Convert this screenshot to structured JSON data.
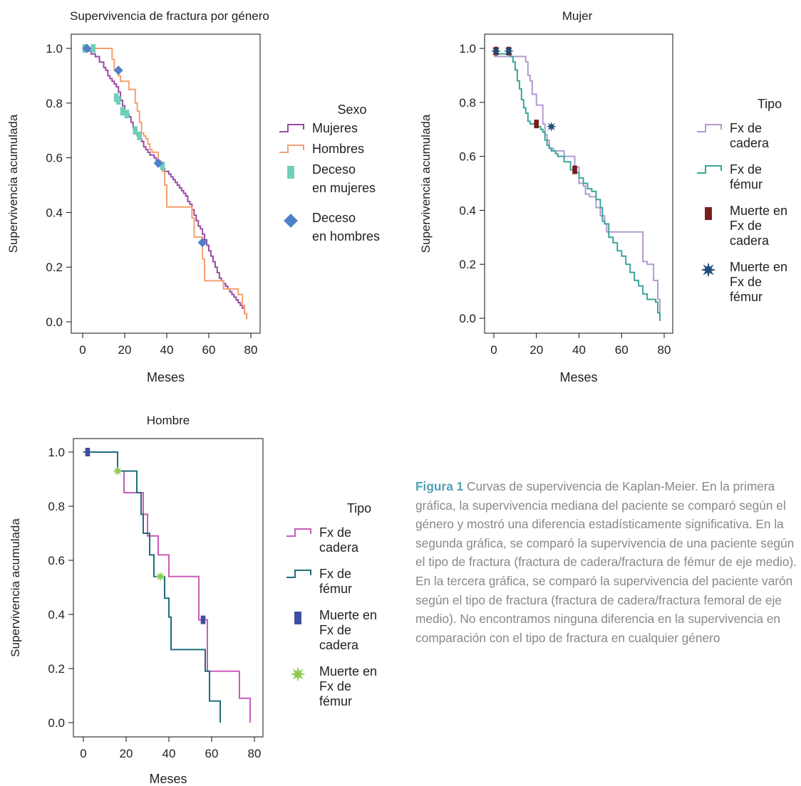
{
  "colors": {
    "mujeres": "#9a4aa6",
    "hombres": "#f4a070",
    "deceso_mujeres": "#6fcfb8",
    "deceso_hombres": "#4f80c8",
    "mujer_cadera": "#b49ad0",
    "mujer_femur": "#3aa69a",
    "mujer_muerte_cadera": "#7a1c1c",
    "mujer_muerte_femur": "#1e4f7a",
    "hombre_cadera": "#c95cb8",
    "hombre_femur": "#1f6e7a",
    "hombre_muerte_cadera": "#3f4ea0",
    "hombre_muerte_femur": "#8acc50",
    "caption_label": "#4fa3b5",
    "caption_text": "#888888"
  },
  "caption": {
    "figure_label": "Figura 1",
    "text": " Curvas de supervivencia de Kaplan-Meier. En la primera gráfica, la supervivencia mediana del paciente se comparó según el género y mostró una diferencia estadísticamente significativa. En la segunda gráfica, se comparó la supervivencia de una paciente según el tipo de fractura (fractura de cadera/fractura de fémur de eje medio). En la tercera gráfica, se comparó la supervivencia del paciente varón según el tipo de fractura (fractura de cadera/fractura femoral de eje medio). No encontramos ninguna diferencia en la supervivencia en comparación con el tipo de fractura en cualquier género"
  },
  "chart_data": [
    {
      "type": "line",
      "step": true,
      "title": "Supervivencia de fractura por género",
      "xlabel": "Meses",
      "ylabel": "Supervivencia acumulada",
      "xlim": [
        0,
        80
      ],
      "ylim": [
        0,
        1
      ],
      "xticks": [
        "0",
        "20",
        "40",
        "60",
        "80"
      ],
      "yticks": [
        "0.0",
        "0.2",
        "0.4",
        "0.6",
        "0.8",
        "1.0"
      ],
      "legend_title": "Sexo",
      "legend_position": "right",
      "series": [
        {
          "name": "Mujeres",
          "color": "#9a4aa6",
          "x": [
            0,
            2,
            4,
            6,
            8,
            10,
            11,
            12,
            13,
            14,
            15,
            16,
            17,
            18,
            19,
            20,
            21,
            22,
            23,
            24,
            25,
            26,
            27,
            28,
            29,
            30,
            31,
            32,
            33,
            34,
            35,
            36,
            37,
            38,
            39,
            40,
            41,
            42,
            43,
            44,
            45,
            46,
            47,
            48,
            49,
            50,
            51,
            52,
            53,
            54,
            55,
            56,
            57,
            58,
            59,
            60,
            61,
            62,
            63,
            64,
            65,
            66,
            67,
            68,
            69,
            70,
            71,
            72,
            73,
            74,
            75,
            76,
            77,
            78
          ],
          "y": [
            1.0,
            0.99,
            0.98,
            0.97,
            0.95,
            0.93,
            0.92,
            0.9,
            0.89,
            0.88,
            0.87,
            0.86,
            0.84,
            0.81,
            0.79,
            0.77,
            0.76,
            0.75,
            0.73,
            0.71,
            0.69,
            0.68,
            0.67,
            0.66,
            0.64,
            0.63,
            0.62,
            0.61,
            0.61,
            0.6,
            0.59,
            0.58,
            0.57,
            0.56,
            0.55,
            0.55,
            0.54,
            0.53,
            0.52,
            0.51,
            0.5,
            0.49,
            0.48,
            0.47,
            0.46,
            0.44,
            0.43,
            0.41,
            0.39,
            0.37,
            0.35,
            0.34,
            0.32,
            0.3,
            0.28,
            0.26,
            0.24,
            0.22,
            0.2,
            0.18,
            0.16,
            0.15,
            0.14,
            0.13,
            0.12,
            0.11,
            0.1,
            0.09,
            0.08,
            0.07,
            0.06,
            0.05,
            0.03,
            0.01
          ]
        },
        {
          "name": "Hombres",
          "color": "#f4a070",
          "x": [
            0,
            14,
            15,
            17,
            18,
            22,
            25,
            26,
            27,
            28,
            29,
            30,
            31,
            32,
            33,
            36,
            37,
            38,
            39,
            40,
            44,
            45,
            46,
            48,
            50,
            52,
            53,
            57,
            58,
            60,
            62,
            64,
            67,
            70,
            72,
            74,
            76,
            77,
            78
          ],
          "y": [
            1.0,
            0.96,
            0.92,
            0.9,
            0.88,
            0.85,
            0.8,
            0.77,
            0.73,
            0.69,
            0.68,
            0.67,
            0.65,
            0.63,
            0.62,
            0.59,
            0.57,
            0.55,
            0.5,
            0.42,
            0.42,
            0.42,
            0.42,
            0.42,
            0.42,
            0.38,
            0.31,
            0.23,
            0.15,
            0.15,
            0.15,
            0.15,
            0.12,
            0.12,
            0.12,
            0.1,
            0.06,
            0.03,
            0.01
          ]
        }
      ],
      "markers": [
        {
          "name": "Deceso en mujeres",
          "shape": "rect",
          "color": "#6fcfb8",
          "x": [
            1,
            5,
            16,
            17,
            19,
            21,
            25,
            27,
            38
          ],
          "y": [
            1.0,
            1.0,
            0.82,
            0.81,
            0.77,
            0.76,
            0.7,
            0.68,
            0.57
          ]
        },
        {
          "name": "Deceso en hombres",
          "shape": "diamond",
          "color": "#4f80c8",
          "x": [
            2,
            17,
            36,
            57
          ],
          "y": [
            1.0,
            0.92,
            0.58,
            0.29
          ]
        }
      ]
    },
    {
      "type": "line",
      "step": true,
      "title": "Mujer",
      "xlabel": "Meses",
      "ylabel": "Supervivencia acumulada",
      "xlim": [
        0,
        80
      ],
      "ylim": [
        0,
        1
      ],
      "xticks": [
        "0",
        "20",
        "40",
        "60",
        "80"
      ],
      "yticks": [
        "0.0",
        "0.2",
        "0.4",
        "0.6",
        "0.8",
        "1.0"
      ],
      "legend_title": "Tipo",
      "legend_position": "right",
      "series": [
        {
          "name": "Fx de cadera",
          "color": "#b49ad0",
          "x": [
            0,
            10,
            15,
            16,
            17,
            18,
            20,
            23,
            24,
            25,
            26,
            28,
            30,
            33,
            38,
            40,
            42,
            43,
            45,
            48,
            50,
            52,
            53,
            56,
            58,
            61,
            64,
            70,
            72,
            75,
            77,
            78
          ],
          "y": [
            0.97,
            0.97,
            0.95,
            0.9,
            0.88,
            0.83,
            0.79,
            0.72,
            0.68,
            0.66,
            0.63,
            0.62,
            0.62,
            0.6,
            0.56,
            0.5,
            0.49,
            0.46,
            0.45,
            0.41,
            0.38,
            0.35,
            0.32,
            0.32,
            0.32,
            0.32,
            0.32,
            0.21,
            0.2,
            0.14,
            0.07,
            0.02
          ]
        },
        {
          "name": "Fx de fémur",
          "color": "#3aa69a",
          "x": [
            0,
            8,
            9,
            10,
            11,
            12,
            13,
            14,
            15,
            16,
            17,
            18,
            19,
            20,
            21,
            22,
            23,
            24,
            25,
            26,
            27,
            28,
            29,
            30,
            33,
            36,
            38,
            40,
            42,
            44,
            46,
            48,
            50,
            51,
            52,
            54,
            56,
            58,
            60,
            62,
            64,
            66,
            68,
            70,
            72,
            74,
            76,
            77,
            78
          ],
          "y": [
            0.98,
            0.97,
            0.95,
            0.92,
            0.88,
            0.85,
            0.81,
            0.78,
            0.76,
            0.73,
            0.72,
            0.72,
            0.72,
            0.71,
            0.71,
            0.7,
            0.69,
            0.66,
            0.64,
            0.63,
            0.62,
            0.62,
            0.61,
            0.6,
            0.58,
            0.55,
            0.54,
            0.52,
            0.5,
            0.48,
            0.47,
            0.44,
            0.41,
            0.36,
            0.35,
            0.3,
            0.28,
            0.25,
            0.23,
            0.2,
            0.17,
            0.14,
            0.12,
            0.09,
            0.07,
            0.07,
            0.06,
            0.02,
            -0.01
          ]
        }
      ],
      "markers": [
        {
          "name": "Muerte en Fx de cadera",
          "shape": "rect",
          "color": "#7a1c1c",
          "x": [
            1,
            7,
            20,
            38
          ],
          "y": [
            0.99,
            0.99,
            0.72,
            0.55
          ]
        },
        {
          "name": "Muerte en Fx de fémur",
          "shape": "star",
          "color": "#1e4f7a",
          "x": [
            1,
            7,
            27
          ],
          "y": [
            0.99,
            0.99,
            0.71
          ]
        }
      ]
    },
    {
      "type": "line",
      "step": true,
      "title": "Hombre",
      "xlabel": "Meses",
      "ylabel": "Supervivencia acumulada",
      "xlim": [
        0,
        80
      ],
      "ylim": [
        0,
        1
      ],
      "xticks": [
        "0",
        "20",
        "40",
        "60",
        "80"
      ],
      "yticks": [
        "0.0",
        "0.2",
        "0.4",
        "0.6",
        "0.8",
        "1.0"
      ],
      "legend_title": "Tipo",
      "legend_position": "right",
      "series": [
        {
          "name": "Fx de cadera",
          "color": "#c95cb8",
          "x": [
            0,
            16,
            19,
            25,
            28,
            30,
            35,
            36,
            40,
            53,
            54,
            58,
            73,
            78
          ],
          "y": [
            1.0,
            0.93,
            0.85,
            0.85,
            0.77,
            0.69,
            0.62,
            0.62,
            0.54,
            0.54,
            0.38,
            0.19,
            0.09,
            0.0
          ]
        },
        {
          "name": "Fx de fémur",
          "color": "#1f6e7a",
          "x": [
            0,
            16,
            20,
            25,
            27,
            28,
            31,
            33,
            36,
            38,
            40,
            41,
            56,
            57,
            59,
            64
          ],
          "y": [
            1.0,
            0.93,
            0.93,
            0.85,
            0.77,
            0.7,
            0.62,
            0.54,
            0.54,
            0.46,
            0.39,
            0.27,
            0.27,
            0.19,
            0.08,
            0.0
          ]
        }
      ],
      "markers": [
        {
          "name": "Muerte en Fx de cadera",
          "shape": "rect",
          "color": "#3f4ea0",
          "x": [
            2,
            56
          ],
          "y": [
            1.0,
            0.38
          ]
        },
        {
          "name": "Muerte en Fx de fémur",
          "shape": "star",
          "color": "#8acc50",
          "x": [
            16,
            36
          ],
          "y": [
            0.93,
            0.54
          ]
        }
      ]
    }
  ]
}
